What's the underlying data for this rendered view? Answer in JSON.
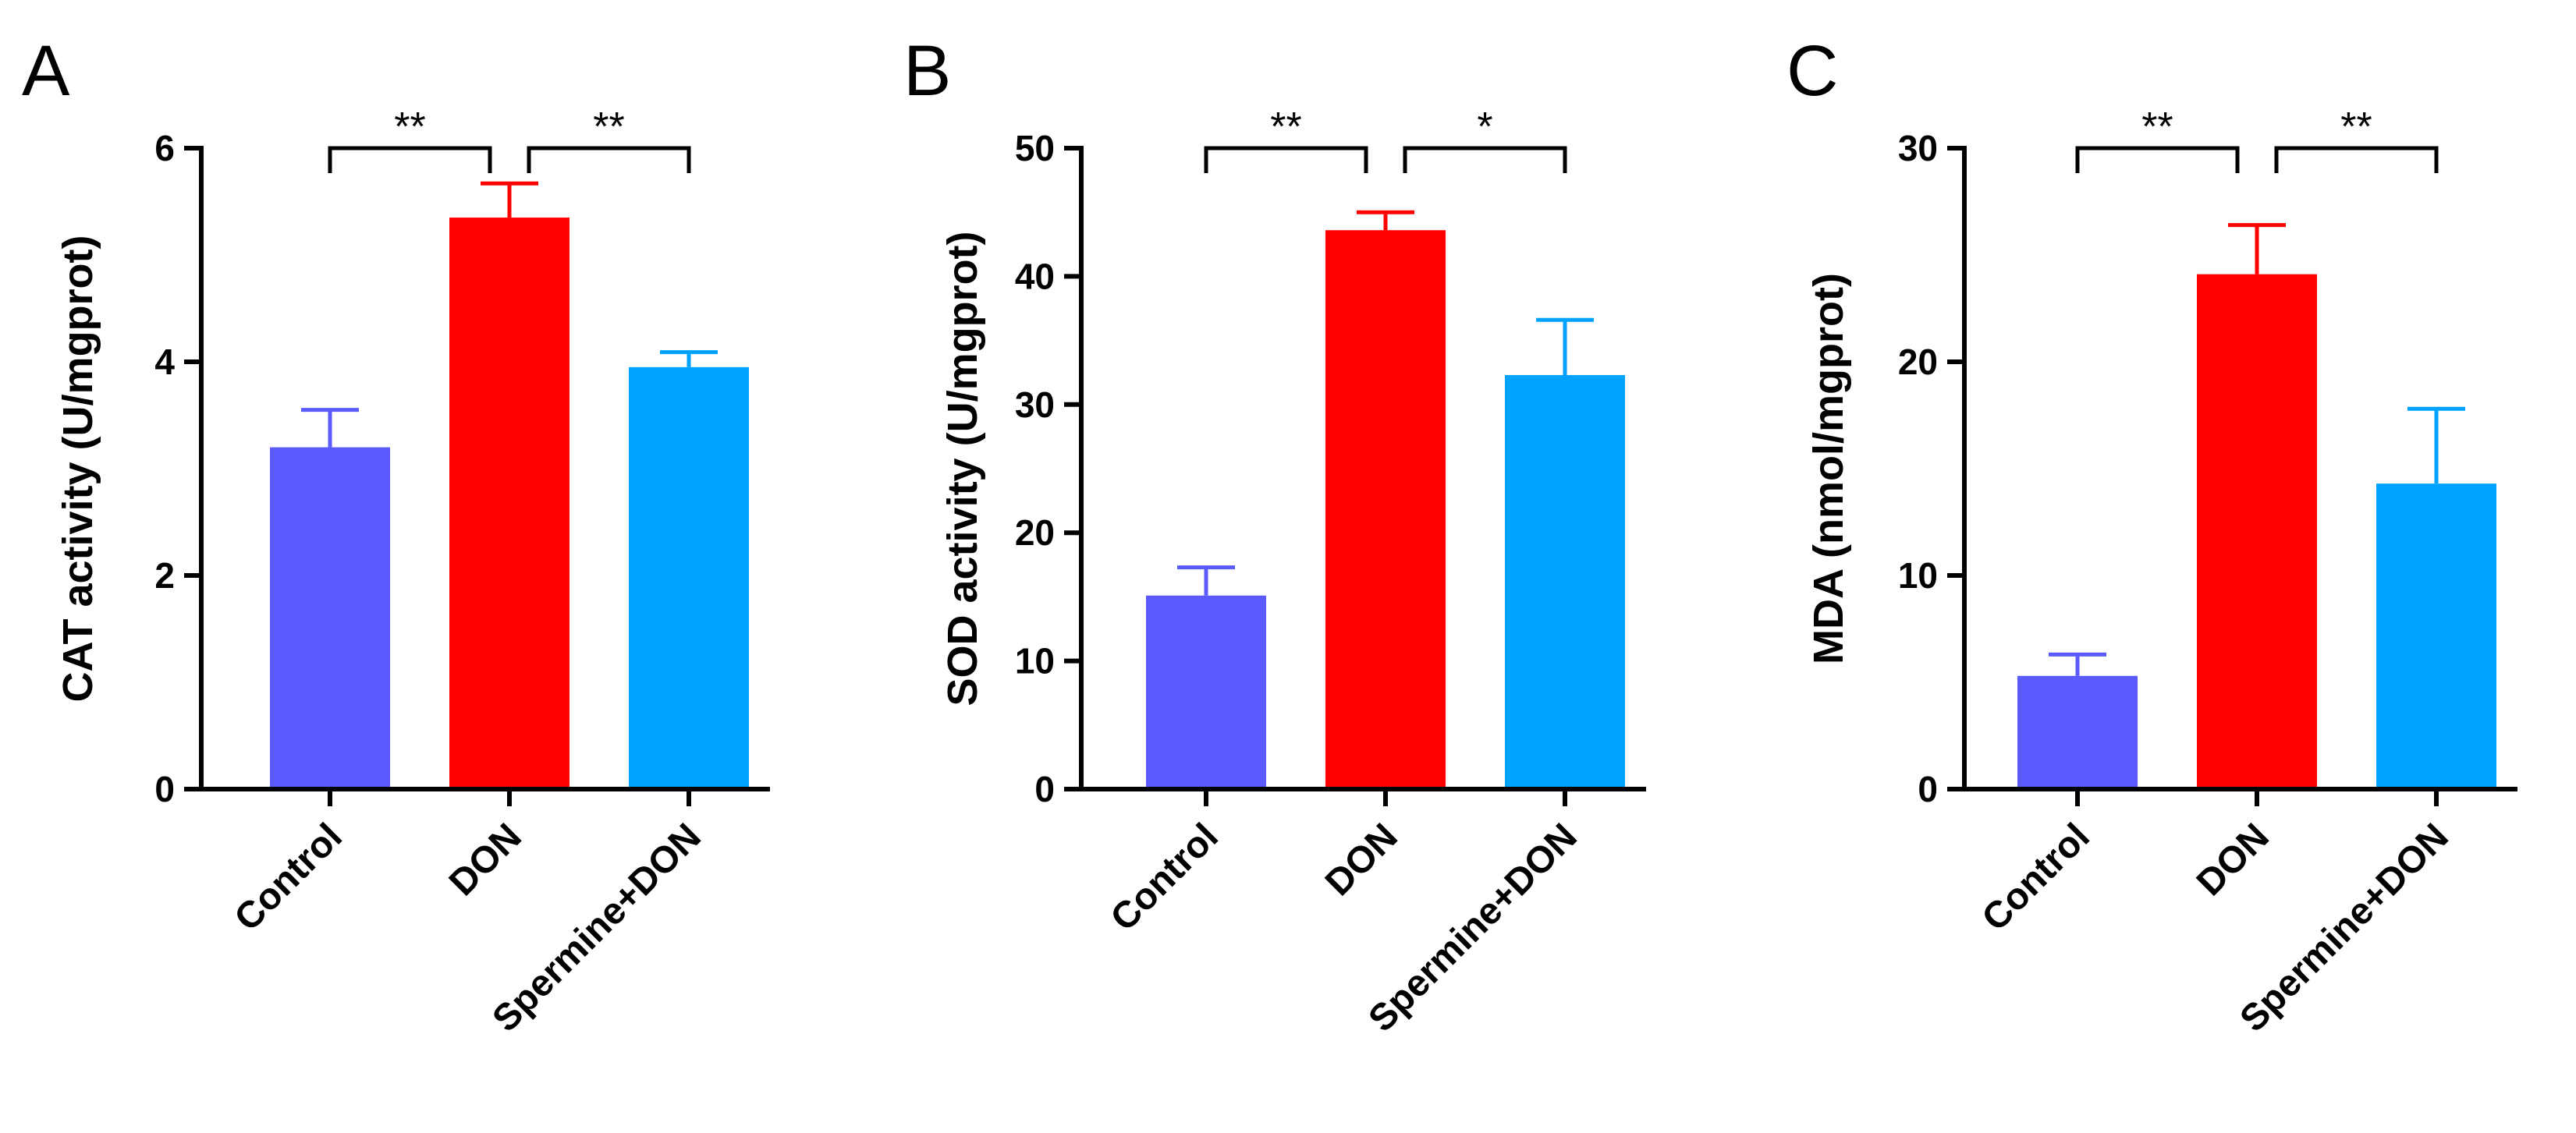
{
  "colors": {
    "control": "#5a5aff",
    "don": "#ff0000",
    "spermine_don": "#00a2ff",
    "axis": "#000000"
  },
  "chart_data": [
    {
      "type": "bar",
      "panel": "A",
      "title": "",
      "xlabel": "",
      "ylabel": "CAT activity (U/mgprot)",
      "ylim": [
        0,
        6
      ],
      "yticks": [
        0,
        2,
        4,
        6
      ],
      "categories": [
        "Control",
        "DON",
        "Spermine+DON"
      ],
      "values": [
        3.2,
        5.35,
        3.95
      ],
      "errors": [
        0.35,
        0.32,
        0.14
      ],
      "bar_colors": [
        "#5a5aff",
        "#ff0000",
        "#00a2ff"
      ],
      "significance": [
        {
          "from": 0,
          "to": 1,
          "label": "**"
        },
        {
          "from": 1,
          "to": 2,
          "label": "**"
        }
      ]
    },
    {
      "type": "bar",
      "panel": "B",
      "title": "",
      "xlabel": "",
      "ylabel": "SOD activity  (U/mgprot)",
      "ylim": [
        0,
        50
      ],
      "yticks": [
        0,
        10,
        20,
        30,
        40,
        50
      ],
      "categories": [
        "Control",
        "DON",
        "Spermine+DON"
      ],
      "values": [
        15.1,
        43.6,
        32.3
      ],
      "errors": [
        2.2,
        1.4,
        4.3
      ],
      "bar_colors": [
        "#5a5aff",
        "#ff0000",
        "#00a2ff"
      ],
      "significance": [
        {
          "from": 0,
          "to": 1,
          "label": "**"
        },
        {
          "from": 1,
          "to": 2,
          "label": "*"
        }
      ]
    },
    {
      "type": "bar",
      "panel": "C",
      "title": "",
      "xlabel": "",
      "ylabel": "MDA (nmol/mgprot)",
      "ylim": [
        0,
        30
      ],
      "yticks": [
        0,
        10,
        20,
        30
      ],
      "categories": [
        "Control",
        "DON",
        "Spermine+DON"
      ],
      "values": [
        5.3,
        24.1,
        14.3
      ],
      "errors": [
        1.0,
        2.3,
        3.5
      ],
      "bar_colors": [
        "#5a5aff",
        "#ff0000",
        "#00a2ff"
      ],
      "significance": [
        {
          "from": 0,
          "to": 1,
          "label": "**"
        },
        {
          "from": 1,
          "to": 2,
          "label": "**"
        }
      ]
    }
  ]
}
